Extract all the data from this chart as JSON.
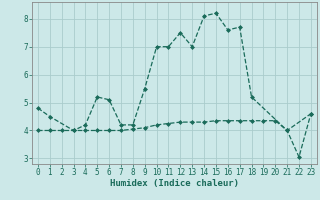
{
  "xlabel": "Humidex (Indice chaleur)",
  "background_color": "#cce8e8",
  "grid_color": "#aacccc",
  "line_color": "#1a6b5a",
  "line1_x": [
    0,
    1,
    3,
    4,
    5,
    6,
    7,
    8,
    9,
    10,
    11,
    12,
    13,
    14,
    15,
    16,
    17,
    18,
    21,
    23
  ],
  "line1_y": [
    4.8,
    4.5,
    4.0,
    4.2,
    5.2,
    5.1,
    4.2,
    4.2,
    5.5,
    7.0,
    7.0,
    7.5,
    7.0,
    8.1,
    8.2,
    7.6,
    7.7,
    5.2,
    4.0,
    4.6
  ],
  "line2_x": [
    0,
    1,
    2,
    3,
    4,
    5,
    6,
    7,
    8,
    9,
    10,
    11,
    12,
    13,
    14,
    15,
    16,
    17,
    18,
    19,
    20,
    21,
    22,
    23
  ],
  "line2_y": [
    4.0,
    4.0,
    4.0,
    4.0,
    4.0,
    4.0,
    4.0,
    4.0,
    4.05,
    4.1,
    4.2,
    4.25,
    4.3,
    4.3,
    4.3,
    4.35,
    4.35,
    4.35,
    4.35,
    4.35,
    4.35,
    4.0,
    3.05,
    4.6
  ],
  "ylim": [
    2.8,
    8.6
  ],
  "xlim": [
    -0.5,
    23.5
  ],
  "yticks": [
    3,
    4,
    5,
    6,
    7,
    8
  ],
  "xticks": [
    0,
    1,
    2,
    3,
    4,
    5,
    6,
    7,
    8,
    9,
    10,
    11,
    12,
    13,
    14,
    15,
    16,
    17,
    18,
    19,
    20,
    21,
    22,
    23
  ],
  "tick_fontsize": 5.5,
  "xlabel_fontsize": 6.5
}
